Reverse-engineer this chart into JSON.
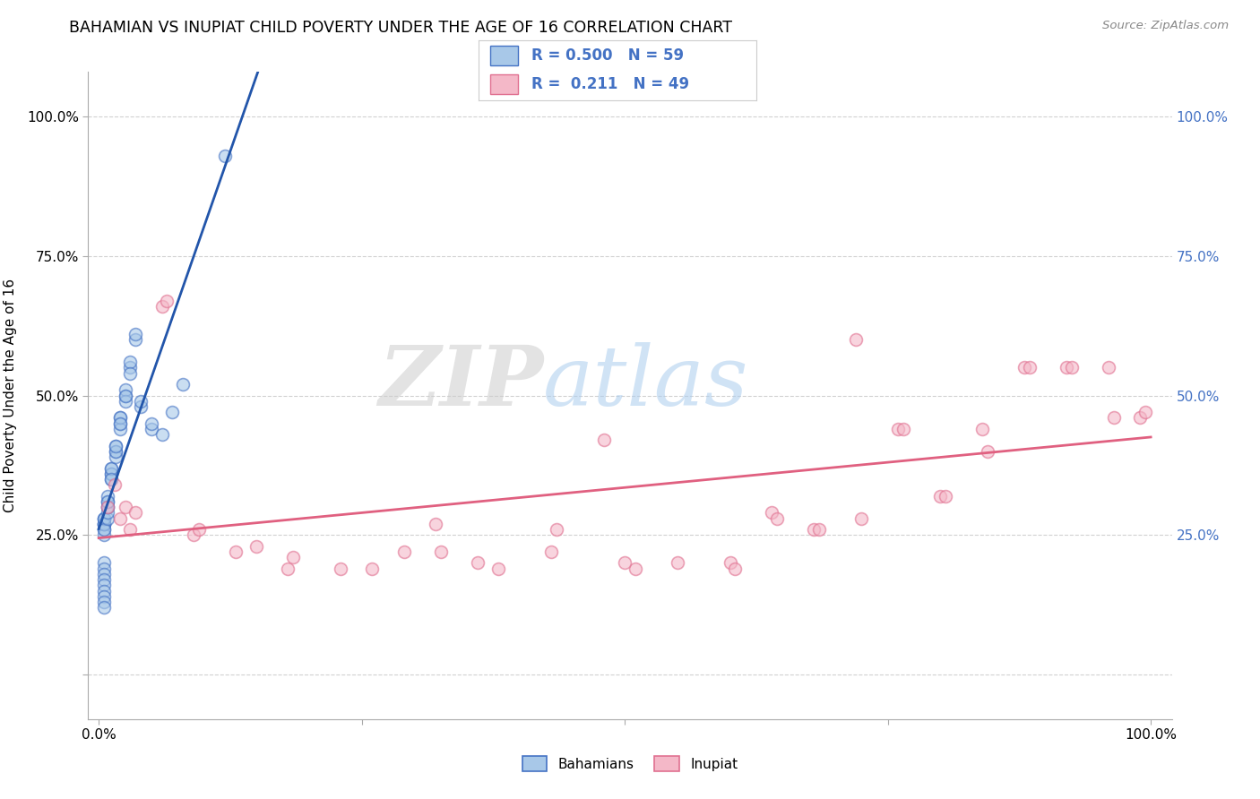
{
  "title": "BAHAMIAN VS INUPIAT CHILD POVERTY UNDER THE AGE OF 16 CORRELATION CHART",
  "source": "Source: ZipAtlas.com",
  "ylabel": "Child Poverty Under the Age of 16",
  "xlabel": "",
  "xlim": [
    -0.01,
    1.02
  ],
  "ylim": [
    -0.08,
    1.08
  ],
  "x_ticks": [
    0.0,
    0.25,
    0.5,
    0.75,
    1.0
  ],
  "x_tick_labels": [
    "0.0%",
    "",
    "",
    "",
    "100.0%"
  ],
  "y_ticks": [
    0.0,
    0.25,
    0.5,
    0.75,
    1.0
  ],
  "y_tick_labels_left": [
    "",
    "25.0%",
    "50.0%",
    "75.0%",
    "100.0%"
  ],
  "y_tick_labels_right": [
    "",
    "25.0%",
    "50.0%",
    "75.0%",
    "100.0%"
  ],
  "legend_label1": "Bahamians",
  "legend_label2": "Inupiat",
  "R1": "0.500",
  "N1": "59",
  "R2": "0.211",
  "N2": "49",
  "blue_face": "#a8c8e8",
  "blue_edge": "#4472c4",
  "pink_face": "#f4b8c8",
  "pink_edge": "#e07090",
  "blue_line": "#2255aa",
  "pink_line": "#e06080",
  "blue_dash": "#88aadd",
  "background_color": "#ffffff",
  "bahamian_x": [
    0.005,
    0.005,
    0.005,
    0.005,
    0.005,
    0.005,
    0.005,
    0.005,
    0.005,
    0.005,
    0.008,
    0.008,
    0.008,
    0.008,
    0.008,
    0.008,
    0.008,
    0.012,
    0.012,
    0.012,
    0.012,
    0.012,
    0.012,
    0.016,
    0.016,
    0.016,
    0.016,
    0.016,
    0.02,
    0.02,
    0.02,
    0.02,
    0.02,
    0.025,
    0.025,
    0.025,
    0.025,
    0.03,
    0.03,
    0.03,
    0.035,
    0.035,
    0.04,
    0.04,
    0.05,
    0.05,
    0.06,
    0.07,
    0.08,
    0.005,
    0.005,
    0.005,
    0.005,
    0.005,
    0.005,
    0.005,
    0.005,
    0.005,
    0.12
  ],
  "bahamian_y": [
    0.27,
    0.27,
    0.28,
    0.26,
    0.25,
    0.28,
    0.27,
    0.27,
    0.28,
    0.26,
    0.3,
    0.31,
    0.32,
    0.28,
    0.29,
    0.3,
    0.31,
    0.36,
    0.37,
    0.35,
    0.36,
    0.37,
    0.35,
    0.4,
    0.41,
    0.39,
    0.4,
    0.41,
    0.46,
    0.45,
    0.44,
    0.46,
    0.45,
    0.5,
    0.51,
    0.49,
    0.5,
    0.55,
    0.56,
    0.54,
    0.6,
    0.61,
    0.48,
    0.49,
    0.44,
    0.45,
    0.43,
    0.47,
    0.52,
    0.2,
    0.19,
    0.18,
    0.17,
    0.16,
    0.15,
    0.14,
    0.13,
    0.12,
    0.93
  ],
  "inupiat_x": [
    0.008,
    0.015,
    0.02,
    0.025,
    0.03,
    0.035,
    0.06,
    0.065,
    0.09,
    0.095,
    0.13,
    0.15,
    0.18,
    0.185,
    0.23,
    0.26,
    0.29,
    0.32,
    0.325,
    0.36,
    0.38,
    0.43,
    0.435,
    0.48,
    0.51,
    0.55,
    0.6,
    0.605,
    0.64,
    0.645,
    0.68,
    0.685,
    0.72,
    0.725,
    0.76,
    0.765,
    0.8,
    0.805,
    0.84,
    0.845,
    0.88,
    0.885,
    0.92,
    0.925,
    0.96,
    0.965,
    0.99,
    0.995,
    0.5
  ],
  "inupiat_y": [
    0.3,
    0.34,
    0.28,
    0.3,
    0.26,
    0.29,
    0.66,
    0.67,
    0.25,
    0.26,
    0.22,
    0.23,
    0.19,
    0.21,
    0.19,
    0.19,
    0.22,
    0.27,
    0.22,
    0.2,
    0.19,
    0.22,
    0.26,
    0.42,
    0.19,
    0.2,
    0.2,
    0.19,
    0.29,
    0.28,
    0.26,
    0.26,
    0.6,
    0.28,
    0.44,
    0.44,
    0.32,
    0.32,
    0.44,
    0.4,
    0.55,
    0.55,
    0.55,
    0.55,
    0.55,
    0.46,
    0.46,
    0.47,
    0.2
  ]
}
